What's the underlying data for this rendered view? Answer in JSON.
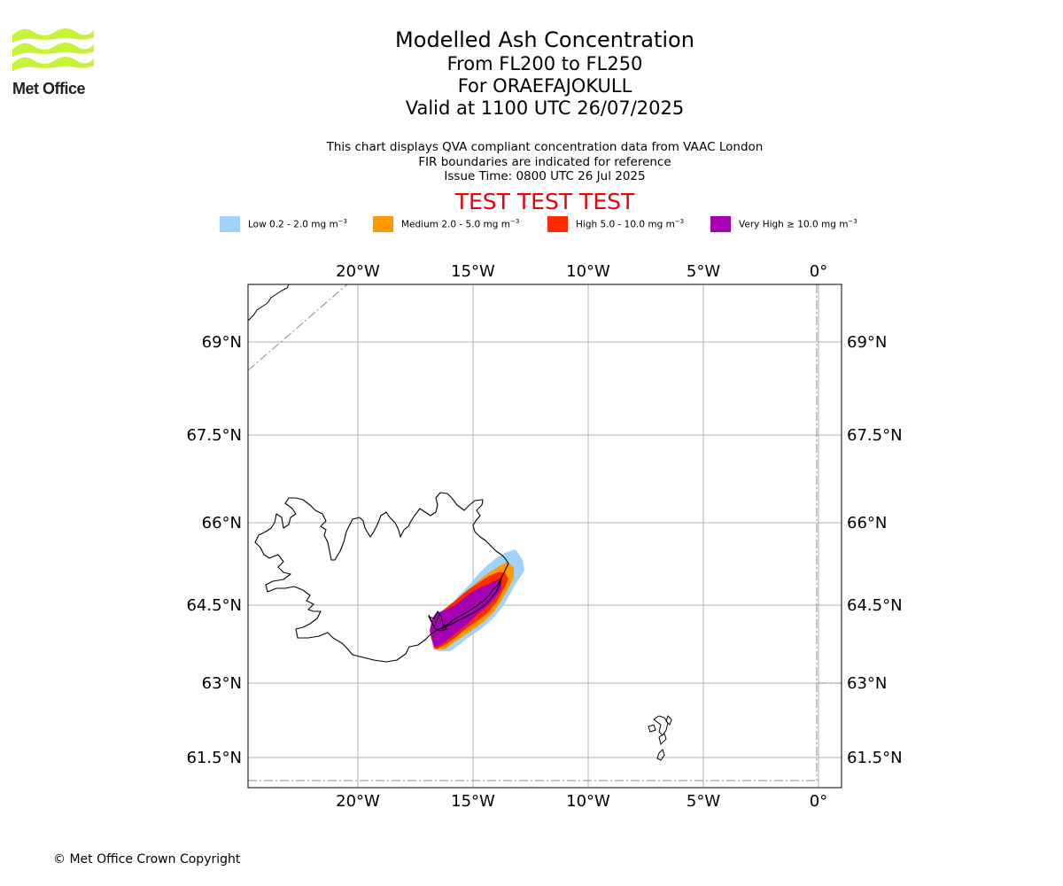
{
  "logo": {
    "name": "Met Office",
    "colors": {
      "wave": "#c8f23c",
      "text": "#222222"
    }
  },
  "titles": {
    "main": "Modelled Ash Concentration",
    "levels": "From FL200 to FL250",
    "volcano": "For ORAEFAJOKULL",
    "valid": "Valid at 1100 UTC 26/07/2025"
  },
  "subtitle": {
    "line1": "This chart displays QVA compliant concentration data from VAAC London",
    "line2": "FIR boundaries are indicated for reference",
    "line3": "Issue Time: 0800 UTC 26 Jul 2025"
  },
  "banner": {
    "text": "TEST TEST TEST",
    "color": "#e8000b"
  },
  "legend": [
    {
      "label": "Low 0.2 - 2.0 mg m",
      "sup": "−3",
      "color": "#a0d2fa"
    },
    {
      "label": "Medium 2.0 - 5.0 mg m",
      "sup": "−3",
      "color": "#ff9900"
    },
    {
      "label": "High 5.0 - 10.0 mg m",
      "sup": "−3",
      "color": "#ff2a00"
    },
    {
      "label": "Very High  ≥  10.0 mg m",
      "sup": "−3",
      "color": "#a600b3"
    }
  ],
  "map": {
    "lon_labels": [
      "20°W",
      "15°W",
      "10°W",
      "5°W",
      "0°"
    ],
    "lat_labels": [
      "69°N",
      "67.5°N",
      "66°N",
      "64.5°N",
      "63°N",
      "61.5°N"
    ],
    "extent": {
      "lon_min": -24.7,
      "lon_max": 1.0,
      "lat_min": 61.0,
      "lat_max": 70.0
    },
    "grid_color": "#b0b0b0",
    "fir_color": "#8c8c8c",
    "coastline_color": "#000000"
  },
  "footer": {
    "copyright": "© Met Office Crown Copyright"
  }
}
